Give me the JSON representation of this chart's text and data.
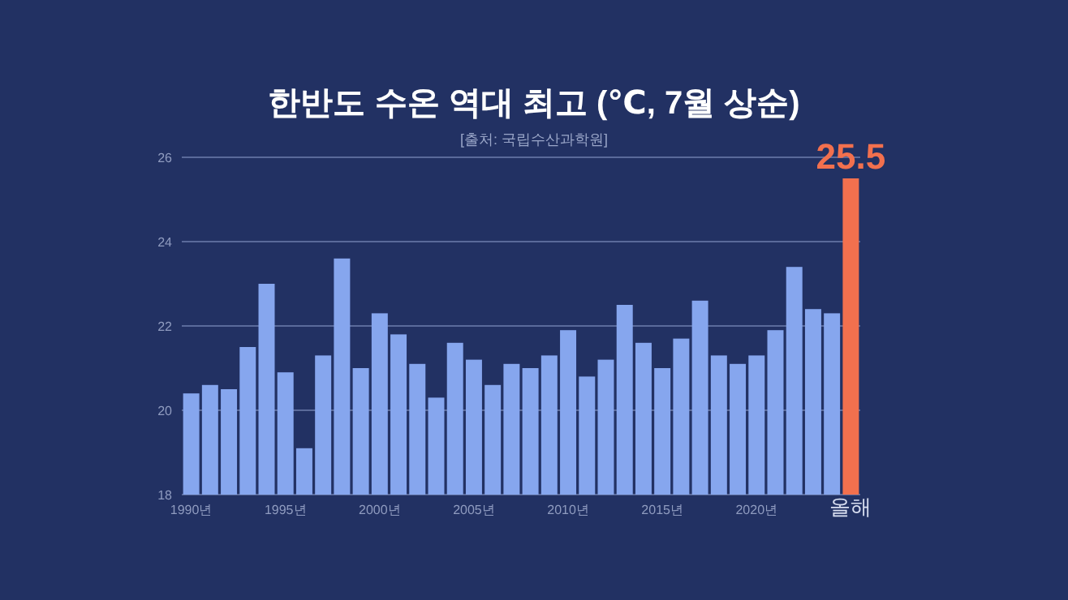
{
  "chart_data": {
    "type": "bar",
    "title": "한반도 수온 역대 최고 (℃, 7월 상순)",
    "annotations": [
      "[출처: 국립수산과학원]"
    ],
    "categories": [
      "1990년",
      null,
      null,
      null,
      null,
      "1995년",
      null,
      null,
      null,
      null,
      "2000년",
      null,
      null,
      null,
      null,
      "2005년",
      null,
      null,
      null,
      null,
      "2010년",
      null,
      null,
      null,
      null,
      "2015년",
      null,
      null,
      null,
      null,
      "2020년",
      null,
      null,
      null,
      null,
      "올해"
    ],
    "values": [
      20.4,
      20.6,
      20.5,
      21.5,
      23.0,
      20.9,
      19.1,
      21.3,
      23.6,
      21.0,
      22.3,
      21.8,
      21.1,
      20.3,
      21.6,
      21.2,
      20.6,
      21.1,
      21.0,
      21.3,
      21.9,
      20.8,
      21.2,
      22.5,
      21.6,
      21.0,
      21.7,
      22.6,
      21.3,
      21.1,
      21.3,
      21.9,
      23.4,
      22.4,
      22.3,
      25.5
    ],
    "colors": [
      "#86a6ee",
      "#86a6ee",
      "#86a6ee",
      "#86a6ee",
      "#86a6ee",
      "#86a6ee",
      "#86a6ee",
      "#86a6ee",
      "#86a6ee",
      "#86a6ee",
      "#86a6ee",
      "#86a6ee",
      "#86a6ee",
      "#86a6ee",
      "#86a6ee",
      "#86a6ee",
      "#86a6ee",
      "#86a6ee",
      "#86a6ee",
      "#86a6ee",
      "#86a6ee",
      "#86a6ee",
      "#86a6ee",
      "#86a6ee",
      "#86a6ee",
      "#86a6ee",
      "#86a6ee",
      "#86a6ee",
      "#86a6ee",
      "#86a6ee",
      "#86a6ee",
      "#86a6ee",
      "#86a6ee",
      "#86a6ee",
      "#86a6ee",
      "#f2704e"
    ],
    "value_labels": [
      null,
      null,
      null,
      null,
      null,
      null,
      null,
      null,
      null,
      null,
      null,
      null,
      null,
      null,
      null,
      null,
      null,
      null,
      null,
      null,
      null,
      null,
      null,
      null,
      null,
      null,
      null,
      null,
      null,
      null,
      null,
      null,
      null,
      null,
      null,
      "25.5"
    ],
    "ylim": [
      18,
      26
    ],
    "yticks": [
      18,
      20,
      22,
      24,
      26
    ],
    "grid": "y"
  }
}
